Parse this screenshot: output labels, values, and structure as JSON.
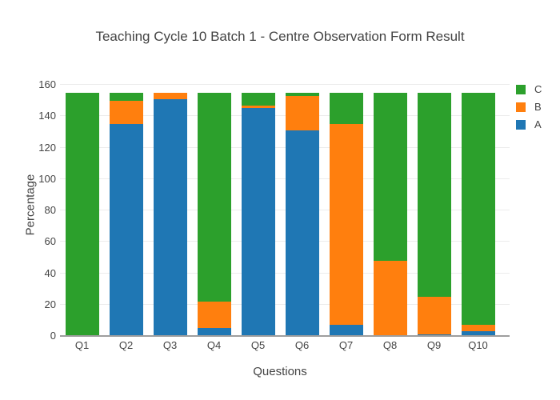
{
  "title": "Teaching Cycle 10 Batch 1 - Centre Observation Form Result",
  "colors": {
    "series_a": "#1f77b4",
    "series_b": "#ff7f0e",
    "series_c": "#2ca02c",
    "grid": "#ececec",
    "axis_line": "#9e9e9e",
    "text": "#444444"
  },
  "chart_data": {
    "type": "bar",
    "stacked": true,
    "title": "Teaching Cycle 10 Batch 1 - Centre Observation Form Result",
    "xlabel": "Questions",
    "ylabel": "Percentage",
    "categories": [
      "Q1",
      "Q2",
      "Q3",
      "Q4",
      "Q5",
      "Q6",
      "Q7",
      "Q8",
      "Q9",
      "Q10"
    ],
    "series": [
      {
        "name": "A",
        "color": "#1f77b4",
        "values": [
          0,
          135,
          151,
          5,
          145,
          131,
          7,
          0,
          1,
          3
        ]
      },
      {
        "name": "B",
        "color": "#ff7f0e",
        "values": [
          0,
          15,
          4,
          17,
          2,
          22,
          128,
          48,
          24,
          4
        ]
      },
      {
        "name": "C",
        "color": "#2ca02c",
        "values": [
          155,
          5,
          0,
          133,
          8,
          2,
          20,
          107,
          130,
          148
        ]
      }
    ],
    "legend_order": [
      "C",
      "B",
      "A"
    ],
    "legend_position": "right",
    "ylim": [
      0,
      160
    ],
    "yticks": [
      0,
      20,
      40,
      60,
      80,
      100,
      120,
      140,
      160
    ],
    "grid": true
  }
}
